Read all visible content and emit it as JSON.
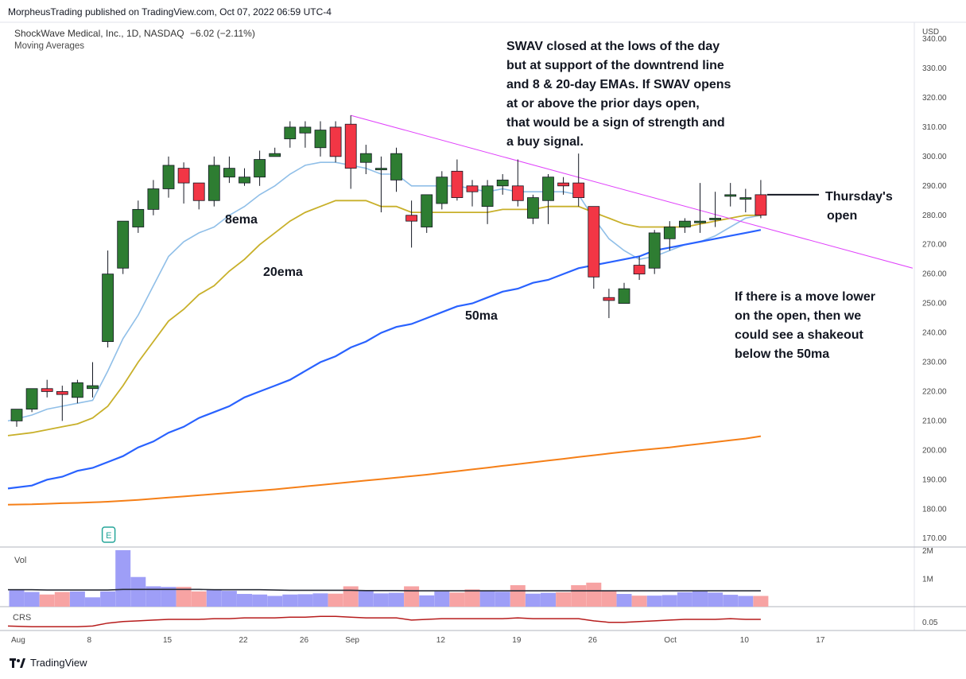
{
  "header": {
    "publisher": "MorpheusTrading published on TradingView.com, Oct 07, 2022 06:59 UTC-4",
    "symbol_line": "ShockWave Medical, Inc., 1D, NASDAQ",
    "change": "−6.02 (−2.11%)",
    "indicator": "Moving Averages"
  },
  "annotations": {
    "main_note": [
      "SWAV closed at the lows of the day",
      "but at support of the downtrend line",
      "and 8 & 20-day EMAs.  If SWAV opens",
      "at or above the prior days open,",
      "that would be a sign of strength and",
      "a buy signal."
    ],
    "open_label": [
      "Thursday's",
      "open"
    ],
    "lower_note": [
      "If there is a move lower",
      "on the open, then we",
      "could see a shakeout",
      "below the 50ma"
    ],
    "ema8": "8ema",
    "ema20": "20ema",
    "ma50": "50ma"
  },
  "footer": {
    "brand": "TradingView"
  },
  "colors": {
    "up": "#2e7d32",
    "down": "#f23645",
    "ema8": "#90bfe8",
    "ema20": "#c8b02a",
    "ma50": "#2962ff",
    "ma200": "#f57f17",
    "trendline": "#e040fb",
    "vol_up": "#9e9ef7",
    "vol_down": "#f7a3a3",
    "vol_ma": "#2a2e39",
    "crs": "#b71c1c"
  },
  "chart_data": {
    "type": "candlestick",
    "currency": "USD",
    "ylim": [
      165,
      345
    ],
    "y_ticks": [
      170,
      180,
      190,
      200,
      210,
      220,
      230,
      240,
      250,
      260,
      270,
      280,
      290,
      300,
      310,
      320,
      330,
      340
    ],
    "y_tick_labels": [
      "170.00",
      "180.00",
      "190.00",
      "200.00",
      "210.00",
      "220.00",
      "230.00",
      "240.00",
      "250.00",
      "260.00",
      "270.00",
      "280.00",
      "290.00",
      "300.00",
      "310.00",
      "320.00",
      "330.00",
      "340.00"
    ],
    "x_tick_labels": [
      "Aug",
      "8",
      "15",
      "22",
      "26",
      "Sep",
      "12",
      "19",
      "26",
      "Oct",
      "10",
      "17"
    ],
    "x_tick_index": [
      0,
      5,
      10,
      15,
      19,
      22,
      28,
      33,
      38,
      43,
      48,
      53
    ],
    "ohlc": [
      [
        210,
        214,
        208,
        214
      ],
      [
        214,
        221,
        213,
        221
      ],
      [
        221,
        224,
        218,
        220
      ],
      [
        220,
        222,
        210,
        219
      ],
      [
        218,
        224,
        216,
        223
      ],
      [
        221,
        230,
        218,
        222
      ],
      [
        237,
        268,
        235,
        260
      ],
      [
        262,
        278,
        260,
        278
      ],
      [
        276,
        285,
        274,
        282
      ],
      [
        282,
        292,
        280,
        289
      ],
      [
        289,
        300,
        286,
        297
      ],
      [
        296,
        298,
        284,
        291
      ],
      [
        291,
        291,
        282,
        285
      ],
      [
        285,
        300,
        283,
        297
      ],
      [
        293,
        300,
        291,
        296
      ],
      [
        291,
        296,
        290,
        293
      ],
      [
        293,
        302,
        290,
        299
      ],
      [
        300,
        303,
        301,
        301
      ],
      [
        306,
        312,
        303,
        310
      ],
      [
        308,
        312,
        303,
        310
      ],
      [
        303,
        312,
        300,
        309
      ],
      [
        310,
        312,
        298,
        300
      ],
      [
        311,
        314,
        289,
        296
      ],
      [
        298,
        304,
        294,
        301
      ],
      [
        296,
        300,
        281,
        296
      ],
      [
        292,
        303,
        288,
        301
      ],
      [
        280,
        285,
        269,
        278
      ],
      [
        276,
        287,
        274,
        287
      ],
      [
        284,
        295,
        282,
        293
      ],
      [
        295,
        299,
        285,
        286
      ],
      [
        290,
        292,
        283,
        288
      ],
      [
        283,
        292,
        277,
        290
      ],
      [
        290,
        294,
        287,
        292
      ],
      [
        290,
        299,
        283,
        285
      ],
      [
        279,
        287,
        277,
        286
      ],
      [
        285,
        294,
        277,
        293
      ],
      [
        291,
        293,
        287,
        290
      ],
      [
        291,
        301,
        283,
        286
      ],
      [
        283,
        283,
        255,
        259
      ],
      [
        252,
        255,
        245,
        251
      ],
      [
        250,
        257,
        250,
        255
      ],
      [
        263,
        266,
        258,
        260
      ],
      [
        262,
        275,
        260,
        274
      ],
      [
        272,
        278,
        268,
        276
      ],
      [
        276,
        279,
        274,
        278
      ],
      [
        278,
        291,
        274,
        278
      ],
      [
        279,
        288,
        276,
        279
      ],
      [
        287,
        291,
        283,
        287
      ],
      [
        286,
        289,
        281,
        286
      ],
      [
        287,
        292,
        279,
        280
      ]
    ],
    "series": [
      {
        "name": "8ema",
        "values": [
          210,
          212,
          214,
          215,
          216,
          217,
          227,
          238,
          246,
          256,
          266,
          271,
          274,
          276,
          280,
          283,
          287,
          290,
          294,
          297,
          298,
          298,
          297,
          296,
          294,
          294,
          290,
          290,
          290,
          290,
          289,
          288,
          289,
          288,
          288,
          288,
          288,
          287,
          279,
          272,
          268,
          265,
          266,
          268,
          270,
          271,
          273,
          276,
          279,
          280
        ]
      },
      {
        "name": "20ema",
        "values": [
          205,
          206,
          207,
          208,
          209,
          211,
          215,
          222,
          230,
          237,
          244,
          248,
          253,
          256,
          261,
          265,
          270,
          274,
          278,
          281,
          283,
          285,
          285,
          285,
          283,
          283,
          281,
          281,
          281,
          281,
          281,
          281,
          282,
          282,
          282,
          283,
          283,
          283,
          281,
          279,
          277,
          276,
          276,
          276,
          276,
          277,
          278,
          279,
          280,
          280
        ]
      },
      {
        "name": "50ma",
        "values": [
          187,
          188,
          190,
          191,
          193,
          194,
          196,
          198,
          201,
          203,
          206,
          208,
          211,
          213,
          215,
          218,
          220,
          222,
          224,
          227,
          230,
          232,
          235,
          237,
          240,
          242,
          243,
          245,
          247,
          249,
          250,
          252,
          254,
          255,
          257,
          258,
          260,
          262,
          263,
          264,
          265,
          266,
          268,
          269,
          270,
          271,
          272,
          273,
          274,
          275
        ]
      },
      {
        "name": "200ma",
        "values": [
          181.5,
          181.6,
          181.8,
          182.0,
          182.1,
          182.3,
          182.5,
          182.8,
          183.1,
          183.5,
          183.9,
          184.3,
          184.7,
          185.1,
          185.5,
          185.9,
          186.3,
          186.7,
          187.2,
          187.7,
          188.2,
          188.7,
          189.2,
          189.7,
          190.2,
          190.7,
          191.2,
          191.7,
          192.3,
          192.9,
          193.5,
          194.1,
          194.7,
          195.3,
          195.9,
          196.5,
          197.1,
          197.7,
          198.3,
          198.9,
          199.5,
          200.0,
          200.5,
          201.0,
          201.6,
          202.2,
          202.8,
          203.4,
          204.0,
          204.8
        ]
      }
    ],
    "volume": {
      "labels": [
        "2M",
        "1M"
      ],
      "ticks": [
        2000000,
        1000000
      ],
      "values": [
        620000,
        520000,
        430000,
        520000,
        540000,
        330000,
        540000,
        2000000,
        1050000,
        720000,
        700000,
        700000,
        540000,
        620000,
        560000,
        450000,
        430000,
        380000,
        430000,
        440000,
        470000,
        460000,
        720000,
        560000,
        470000,
        490000,
        720000,
        400000,
        540000,
        500000,
        610000,
        560000,
        530000,
        760000,
        460000,
        490000,
        510000,
        760000,
        850000,
        560000,
        450000,
        390000,
        390000,
        410000,
        510000,
        540000,
        500000,
        420000,
        380000,
        380000
      ],
      "ma_values": [
        600000,
        600000,
        590000,
        590000,
        590000,
        590000,
        590000,
        610000,
        610000,
        610000,
        610000,
        610000,
        610000,
        600000,
        600000,
        600000,
        600000,
        590000,
        580000,
        580000,
        580000,
        580000,
        580000,
        570000,
        570000,
        570000,
        560000,
        560000,
        560000,
        560000,
        560000,
        560000,
        560000,
        560000,
        560000,
        560000,
        560000,
        560000,
        560000,
        560000,
        560000,
        560000,
        560000,
        560000,
        560000,
        560000,
        560000,
        560000,
        560000,
        560000
      ]
    },
    "crs": {
      "label": "CRS",
      "tick_label": "0.05",
      "values": [
        0.036,
        0.035,
        0.035,
        0.035,
        0.035,
        0.036,
        0.04,
        0.042,
        0.043,
        0.044,
        0.045,
        0.045,
        0.045,
        0.046,
        0.046,
        0.047,
        0.047,
        0.047,
        0.048,
        0.048,
        0.049,
        0.049,
        0.048,
        0.047,
        0.047,
        0.047,
        0.044,
        0.045,
        0.046,
        0.046,
        0.046,
        0.046,
        0.046,
        0.047,
        0.046,
        0.046,
        0.046,
        0.046,
        0.043,
        0.041,
        0.041,
        0.042,
        0.043,
        0.044,
        0.045,
        0.045,
        0.045,
        0.046,
        0.045,
        0.045
      ],
      "ylim": [
        0.03,
        0.06
      ]
    },
    "trendline": {
      "from": [
        22,
        314
      ],
      "to": [
        59,
        262
      ]
    },
    "open_marker": {
      "index": 49,
      "price": 287
    },
    "volume_pane_label": "Vol",
    "event_marker": "E"
  }
}
